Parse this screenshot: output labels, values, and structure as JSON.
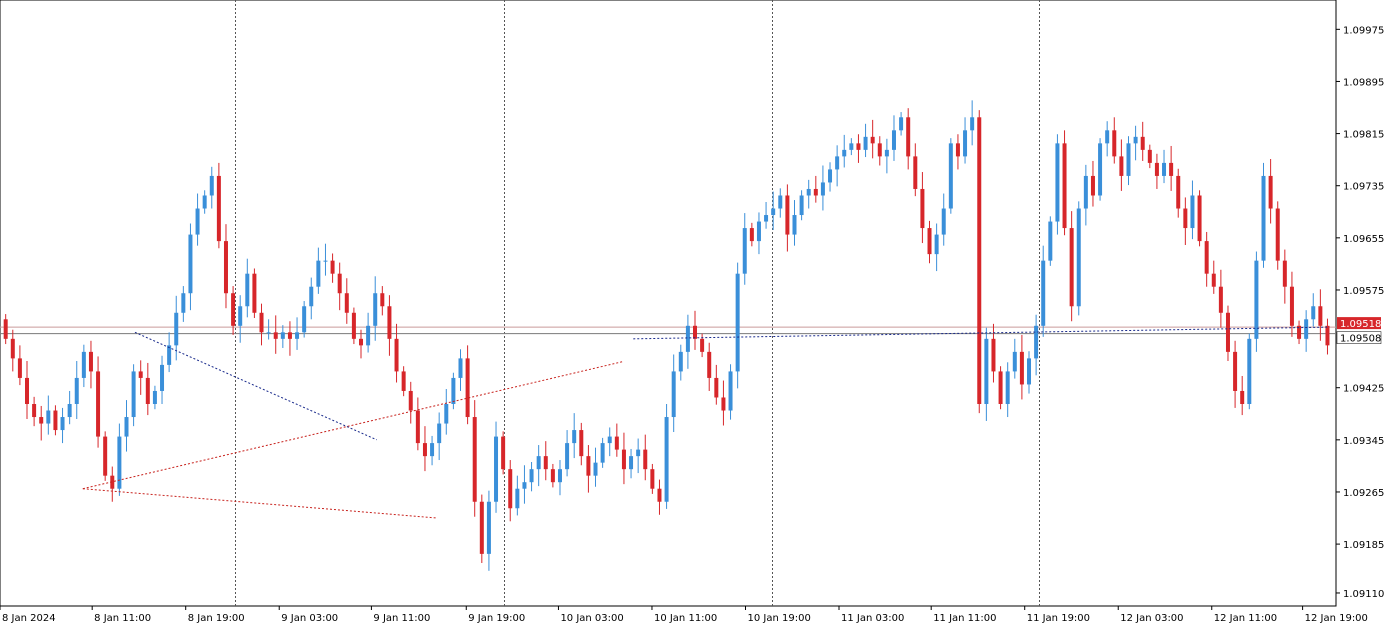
{
  "chart_data": {
    "type": "candlestick",
    "symbol_hint": "",
    "y_ticks": [
      "1.09975",
      "1.09895",
      "1.09815",
      "1.09735",
      "1.09655",
      "1.09575",
      "1.09425",
      "1.09345",
      "1.09265",
      "1.09185",
      "1.09110"
    ],
    "x_ticks": [
      "8 Jan 2024",
      "8 Jan 11:00",
      "8 Jan 19:00",
      "9 Jan 03:00",
      "9 Jan 11:00",
      "9 Jan 19:00",
      "10 Jan 03:00",
      "10 Jan 11:00",
      "10 Jan 19:00",
      "11 Jan 03:00",
      "11 Jan 11:00",
      "11 Jan 19:00",
      "12 Jan 03:00",
      "12 Jan 11:00",
      "12 Jan 19:00"
    ],
    "ylim": [
      1.0909,
      1.1002
    ],
    "current_price_labels": [
      "1.09518",
      "1.09508"
    ],
    "colors": {
      "bull": "#3a8fd9",
      "bear": "#d7262a",
      "grid": "#555555",
      "upper_line": "#c99a9a",
      "lower_line": "#7a7a7a",
      "dot_red": "#c8231e",
      "dot_blue": "#1a2b8c"
    },
    "day_separators": [
      0.176,
      0.377,
      0.578,
      0.778
    ]
  }
}
